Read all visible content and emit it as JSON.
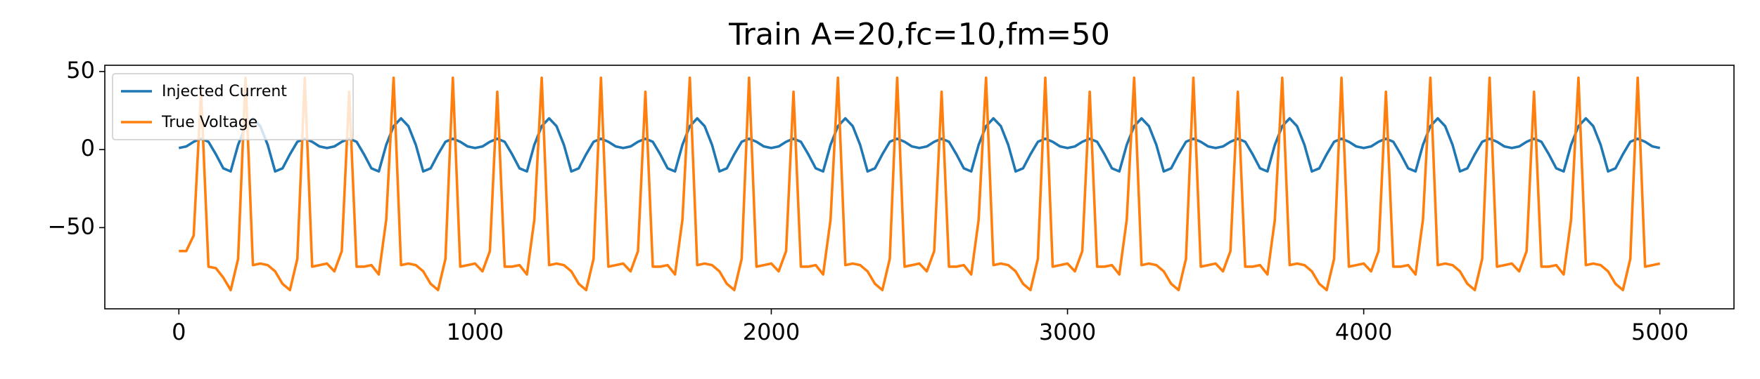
{
  "chart_data": {
    "type": "line",
    "title": "Train A=20,fc=10,fm=50",
    "x": [
      0,
      25,
      50,
      75,
      100,
      125,
      150,
      175,
      200,
      225,
      250,
      275,
      300,
      325,
      350,
      375,
      400,
      425,
      450,
      475,
      500,
      525,
      550,
      575,
      600,
      625,
      650,
      675,
      700,
      725,
      750,
      775,
      800,
      825,
      850,
      875,
      900,
      925,
      950,
      975,
      1000,
      1025,
      1050,
      1075,
      1100,
      1125,
      1150,
      1175,
      1200,
      1225,
      1250,
      1275,
      1300,
      1325,
      1350,
      1375,
      1400,
      1425,
      1450,
      1475,
      1500,
      1525,
      1550,
      1575,
      1600,
      1625,
      1650,
      1675,
      1700,
      1725,
      1750,
      1775,
      1800,
      1825,
      1850,
      1875,
      1900,
      1925,
      1950,
      1975,
      2000,
      2025,
      2050,
      2075,
      2100,
      2125,
      2150,
      2175,
      2200,
      2225,
      2250,
      2275,
      2300,
      2325,
      2350,
      2375,
      2400,
      2425,
      2450,
      2475,
      2500,
      2525,
      2550,
      2575,
      2600,
      2625,
      2650,
      2675,
      2700,
      2725,
      2750,
      2775,
      2800,
      2825,
      2850,
      2875,
      2900,
      2925,
      2950,
      2975,
      3000,
      3025,
      3050,
      3075,
      3100,
      3125,
      3150,
      3175,
      3200,
      3225,
      3250,
      3275,
      3300,
      3325,
      3350,
      3375,
      3400,
      3425,
      3450,
      3475,
      3500,
      3525,
      3550,
      3575,
      3600,
      3625,
      3650,
      3675,
      3700,
      3725,
      3750,
      3775,
      3800,
      3825,
      3850,
      3875,
      3900,
      3925,
      3950,
      3975,
      4000,
      4025,
      4050,
      4075,
      4100,
      4125,
      4150,
      4175,
      4200,
      4225,
      4250,
      4275,
      4300,
      4325,
      4350,
      4375,
      4400,
      4425,
      4450,
      4475,
      4500,
      4525,
      4550,
      4575,
      4600,
      4625,
      4650,
      4675,
      4700,
      4725,
      4750,
      4775,
      4800,
      4825,
      4850,
      4875,
      4900,
      4925,
      4950,
      4975,
      5000
    ],
    "series": [
      {
        "name": "Injected Current",
        "color": "#1f77b4",
        "values": [
          1,
          2,
          5,
          7,
          5,
          -3,
          -12,
          -14,
          3,
          15,
          20,
          15,
          3,
          -14,
          -12,
          -3,
          5,
          7,
          5,
          2,
          1,
          2,
          5,
          7,
          5,
          -3,
          -12,
          -14,
          3,
          15,
          20,
          15,
          3,
          -14,
          -12,
          -3,
          5,
          7,
          5,
          2,
          1,
          2,
          5,
          7,
          5,
          -3,
          -12,
          -14,
          3,
          15,
          20,
          15,
          3,
          -14,
          -12,
          -3,
          5,
          7,
          5,
          2,
          1,
          2,
          5,
          7,
          5,
          -3,
          -12,
          -14,
          3,
          15,
          20,
          15,
          3,
          -14,
          -12,
          -3,
          5,
          7,
          5,
          2,
          1,
          2,
          5,
          7,
          5,
          -3,
          -12,
          -14,
          3,
          15,
          20,
          15,
          3,
          -14,
          -12,
          -3,
          5,
          7,
          5,
          2,
          1,
          2,
          5,
          7,
          5,
          -3,
          -12,
          -14,
          3,
          15,
          20,
          15,
          3,
          -14,
          -12,
          -3,
          5,
          7,
          5,
          2,
          1,
          2,
          5,
          7,
          5,
          -3,
          -12,
          -14,
          3,
          15,
          20,
          15,
          3,
          -14,
          -12,
          -3,
          5,
          7,
          5,
          2,
          1,
          2,
          5,
          7,
          5,
          -3,
          -12,
          -14,
          3,
          15,
          20,
          15,
          3,
          -14,
          -12,
          -3,
          5,
          7,
          5,
          2,
          1,
          2,
          5,
          7,
          5,
          -3,
          -12,
          -14,
          3,
          15,
          20,
          15,
          3,
          -14,
          -12,
          -3,
          5,
          7,
          5,
          2,
          1,
          2,
          5,
          7,
          5,
          -3,
          -12,
          -14,
          3,
          15,
          20,
          15,
          3,
          -14,
          -12,
          -3,
          5,
          7,
          5,
          2,
          1
        ]
      },
      {
        "name": "True Voltage",
        "color": "#ff7f0e",
        "values": [
          -65,
          -65,
          -55,
          37,
          -75,
          -76,
          -82,
          -90,
          -70,
          46,
          -74,
          -73,
          -74,
          -78,
          -86,
          -90,
          -70,
          46,
          -75,
          -74,
          -73,
          -78,
          -65,
          37,
          -75,
          -75,
          -74,
          -80,
          -45,
          46,
          -74,
          -73,
          -74,
          -78,
          -86,
          -90,
          -70,
          46,
          -75,
          -74,
          -73,
          -78,
          -65,
          37,
          -75,
          -75,
          -74,
          -80,
          -45,
          46,
          -74,
          -73,
          -74,
          -78,
          -86,
          -90,
          -70,
          46,
          -75,
          -74,
          -73,
          -78,
          -65,
          37,
          -75,
          -75,
          -74,
          -80,
          -45,
          46,
          -74,
          -73,
          -74,
          -78,
          -86,
          -90,
          -70,
          46,
          -75,
          -74,
          -73,
          -78,
          -65,
          37,
          -75,
          -75,
          -74,
          -80,
          -45,
          46,
          -74,
          -73,
          -74,
          -78,
          -86,
          -90,
          -70,
          46,
          -75,
          -74,
          -73,
          -78,
          -65,
          37,
          -75,
          -75,
          -74,
          -80,
          -45,
          46,
          -74,
          -73,
          -74,
          -78,
          -86,
          -90,
          -70,
          46,
          -75,
          -74,
          -73,
          -78,
          -65,
          37,
          -75,
          -75,
          -74,
          -80,
          -45,
          46,
          -74,
          -73,
          -74,
          -78,
          -86,
          -90,
          -70,
          46,
          -75,
          -74,
          -73,
          -78,
          -65,
          37,
          -75,
          -75,
          -74,
          -80,
          -45,
          46,
          -74,
          -73,
          -74,
          -78,
          -86,
          -90,
          -70,
          46,
          -75,
          -74,
          -73,
          -78,
          -65,
          37,
          -75,
          -75,
          -74,
          -80,
          -45,
          46,
          -74,
          -73,
          -74,
          -78,
          -86,
          -90,
          -70,
          46,
          -75,
          -74,
          -73,
          -78,
          -65,
          37,
          -75,
          -75,
          -74,
          -80,
          -45,
          46,
          -74,
          -73,
          -74,
          -78,
          -86,
          -90,
          -70,
          46,
          -75,
          -74,
          -73
        ]
      }
    ],
    "xlim": [
      -250,
      5250
    ],
    "ylim": [
      -102,
      54
    ],
    "xticks": [
      0,
      1000,
      2000,
      3000,
      4000,
      5000
    ],
    "yticks": [
      50,
      0,
      {
        "value": -50,
        "label": "−50"
      }
    ],
    "legend": "upper left",
    "grid": false
  }
}
